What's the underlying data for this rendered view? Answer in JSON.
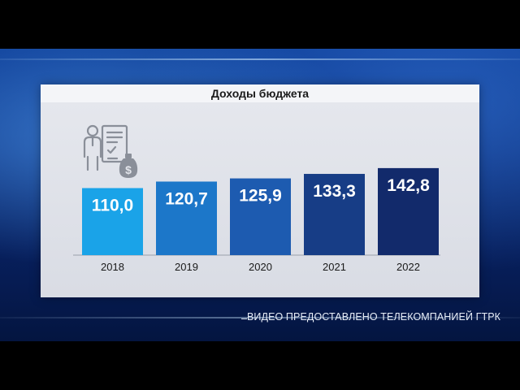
{
  "chart_data": {
    "type": "bar",
    "title": "Доходы бюджета",
    "categories": [
      "2018",
      "2019",
      "2020",
      "2021",
      "2022"
    ],
    "values": [
      110.0,
      120.7,
      125.9,
      133.3,
      142.8
    ],
    "labels": [
      "110,0",
      "120,7",
      "125,9",
      "133,3",
      "142,8"
    ],
    "bar_colors": [
      "#1aa3e8",
      "#1c77c9",
      "#1d5bb0",
      "#173d86",
      "#122a6b"
    ],
    "xlabel": "",
    "ylabel": "",
    "grid": false,
    "legend": "none"
  },
  "icon": "budget-document-money-icon",
  "credit": "ВИДЕО ПРЕДОСТАВЛЕНО ТЕЛЕКОМПАНИЕЙ ГТРК",
  "colors": {
    "panel": "#e2e4ea",
    "background": "#0a2f7e"
  }
}
